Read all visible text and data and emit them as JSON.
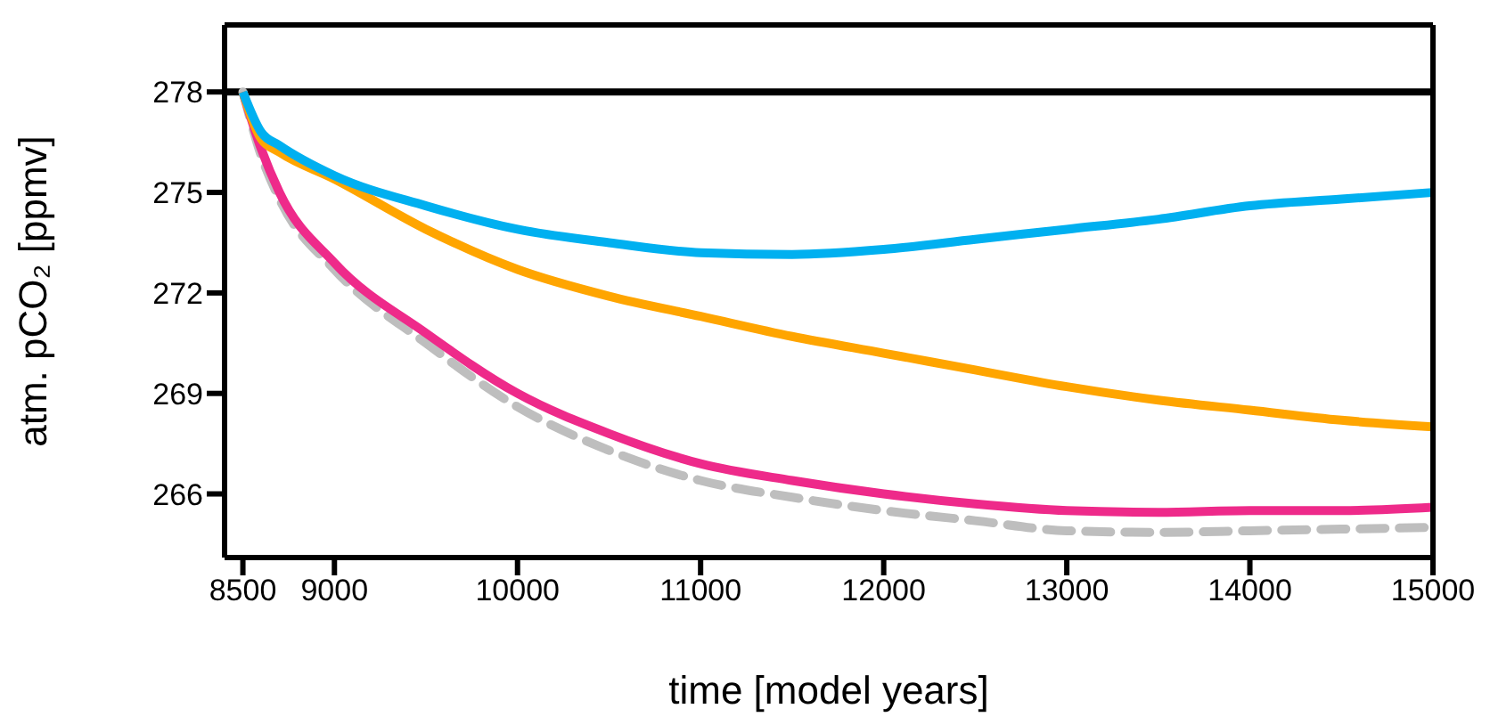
{
  "chart_data": {
    "type": "line",
    "xlabel": "time [model years]",
    "ylabel": "atm. pCO₂ [ppmv]",
    "xlim": [
      8400,
      15000
    ],
    "xticks": [
      8500,
      9000,
      10000,
      11000,
      12000,
      13000,
      14000,
      15000
    ],
    "ylim": [
      264.1,
      280
    ],
    "yticks": [
      278,
      275,
      272,
      269,
      266
    ],
    "grid": false,
    "legend": false,
    "marker": "none",
    "ref_lines": [
      {
        "axis": "y",
        "value": 278,
        "color": "#000000"
      }
    ],
    "series": [
      {
        "color": "#00b0f0",
        "x": [
          8500,
          8600,
          8700,
          9000,
          9500,
          10000,
          10500,
          11000,
          11500,
          12000,
          12500,
          13000,
          13500,
          14000,
          14500,
          15000
        ],
        "values": [
          278,
          276.8,
          276.4,
          275.5,
          274.6,
          273.9,
          273.5,
          273.2,
          273.15,
          273.3,
          273.6,
          273.9,
          274.2,
          274.6,
          274.8,
          275.0
        ]
      },
      {
        "color": "#ffa500",
        "x": [
          8500,
          8600,
          8700,
          9000,
          9500,
          10000,
          10500,
          11000,
          11500,
          12000,
          12500,
          13000,
          13500,
          14000,
          14500,
          15000
        ],
        "values": [
          278,
          276.6,
          276.2,
          275.4,
          273.9,
          272.7,
          271.9,
          271.3,
          270.7,
          270.2,
          269.7,
          269.2,
          268.8,
          268.5,
          268.2,
          268.0
        ]
      },
      {
        "color": "#ee2a8a",
        "x": [
          8500,
          8600,
          8700,
          9000,
          9500,
          10000,
          10500,
          11000,
          11500,
          12000,
          12500,
          13000,
          13500,
          14000,
          14500,
          15000
        ],
        "values": [
          278,
          276.3,
          275.0,
          272.9,
          270.8,
          269.0,
          267.8,
          266.9,
          266.4,
          266.0,
          265.7,
          265.5,
          265.45,
          265.5,
          265.5,
          265.6
        ]
      },
      {
        "color": "#bebebe",
        "line_style": "dashed",
        "x": [
          8500,
          8600,
          8700,
          9000,
          9500,
          10000,
          10500,
          11000,
          11500,
          12000,
          12500,
          13000,
          13500,
          14000,
          14500,
          15000
        ],
        "values": [
          278,
          276.1,
          274.8,
          272.7,
          270.5,
          268.6,
          267.3,
          266.4,
          265.9,
          265.5,
          265.2,
          264.9,
          264.85,
          264.9,
          264.95,
          265.0
        ]
      }
    ]
  }
}
